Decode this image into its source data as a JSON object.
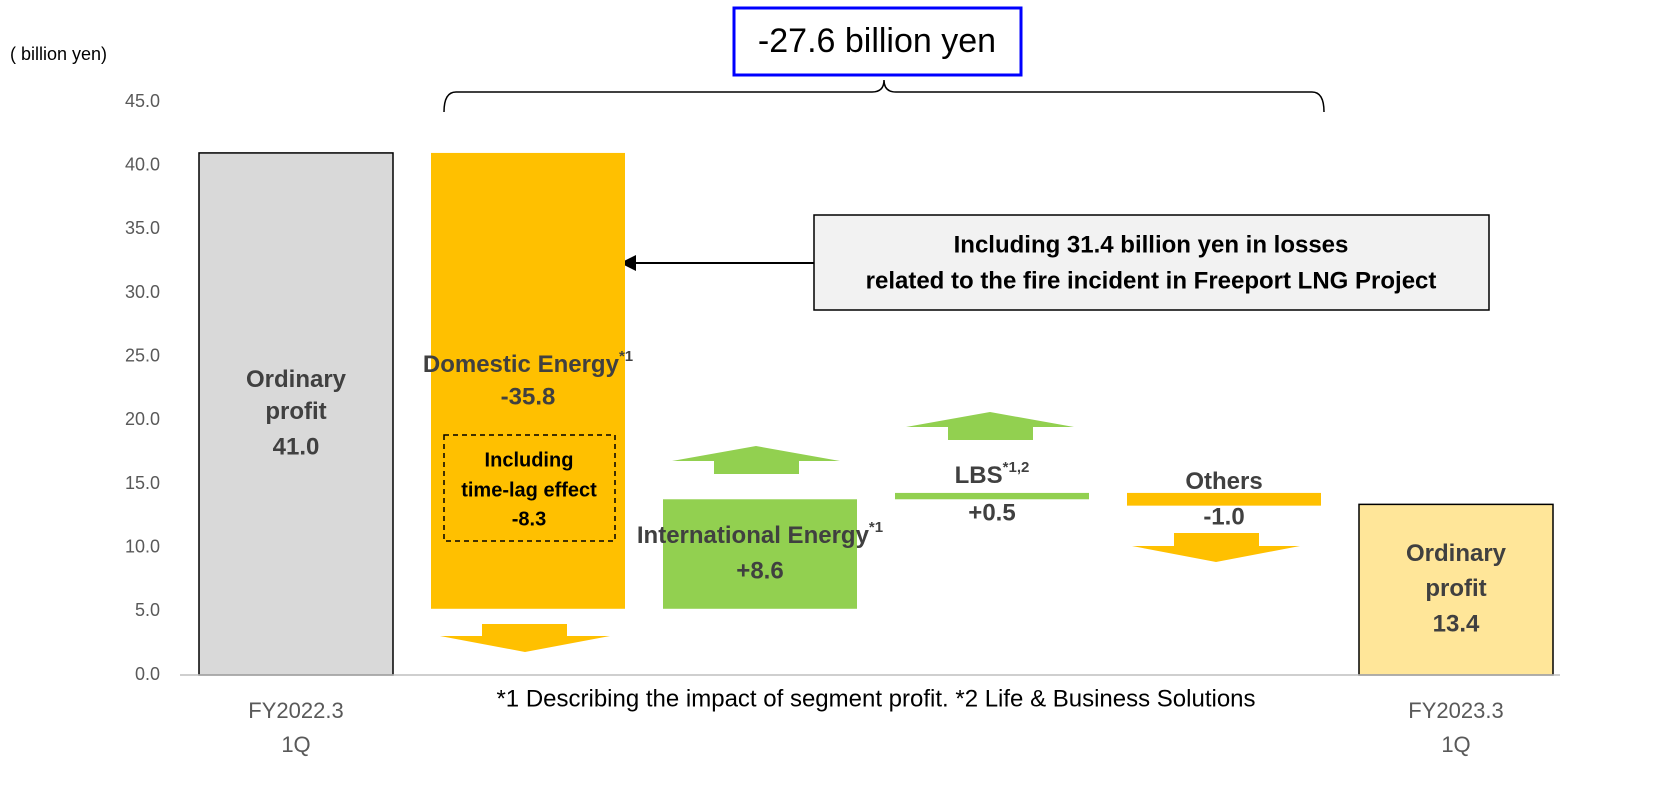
{
  "chart_data": {
    "type": "waterfall",
    "unit_label": "( billion yen)",
    "total_change": "-27.6 billion yen",
    "categories": [
      [
        "FY2022.3",
        "1Q"
      ],
      null,
      null,
      null,
      null,
      [
        "FY2023.3",
        "1Q"
      ]
    ],
    "bar_labels": [
      [
        "Ordinary",
        "profit"
      ],
      [
        "Domestic Energy"
      ],
      [
        "International Energy"
      ],
      [
        "LBS"
      ],
      [
        "Others"
      ],
      [
        "Ordinary",
        "profit"
      ]
    ],
    "superscripts": [
      null,
      "*1",
      "*1",
      "*1,2",
      null,
      null
    ],
    "values": [
      41.0,
      -35.8,
      8.6,
      0.5,
      -1.0,
      13.4
    ],
    "value_labels": [
      "41.0",
      "-35.8",
      "+8.6",
      "+0.5",
      "-1.0",
      "13.4"
    ],
    "totals": [
      true,
      false,
      false,
      false,
      false,
      true
    ],
    "colors": [
      "#d9d9d9",
      "#ffc000",
      "#92d050",
      "#92d050",
      "#ffc000",
      "#ffe699"
    ],
    "callout": [
      "Including 31.4 billion yen in losses",
      "related to the fire incident in Freeport LNG Project"
    ],
    "note_box": [
      "Including",
      "time-lag effect",
      "-8.3"
    ],
    "footnote": "*1 Describing the impact of segment profit.  *2 Life & Business Solutions",
    "ylim": [
      0,
      45
    ],
    "yticks": [
      {
        "value": 0,
        "label": "0.0"
      },
      {
        "value": 5,
        "label": "5.0"
      },
      {
        "value": 10,
        "label": "10.0"
      },
      {
        "value": 15,
        "label": "15.0"
      },
      {
        "value": 20,
        "label": "20.0"
      },
      {
        "value": 25,
        "label": "25.0"
      },
      {
        "value": 30,
        "label": "30.0"
      },
      {
        "value": 35,
        "label": "35.0"
      },
      {
        "value": 40,
        "label": "40.0"
      },
      {
        "value": 45,
        "label": "45.0"
      }
    ]
  }
}
